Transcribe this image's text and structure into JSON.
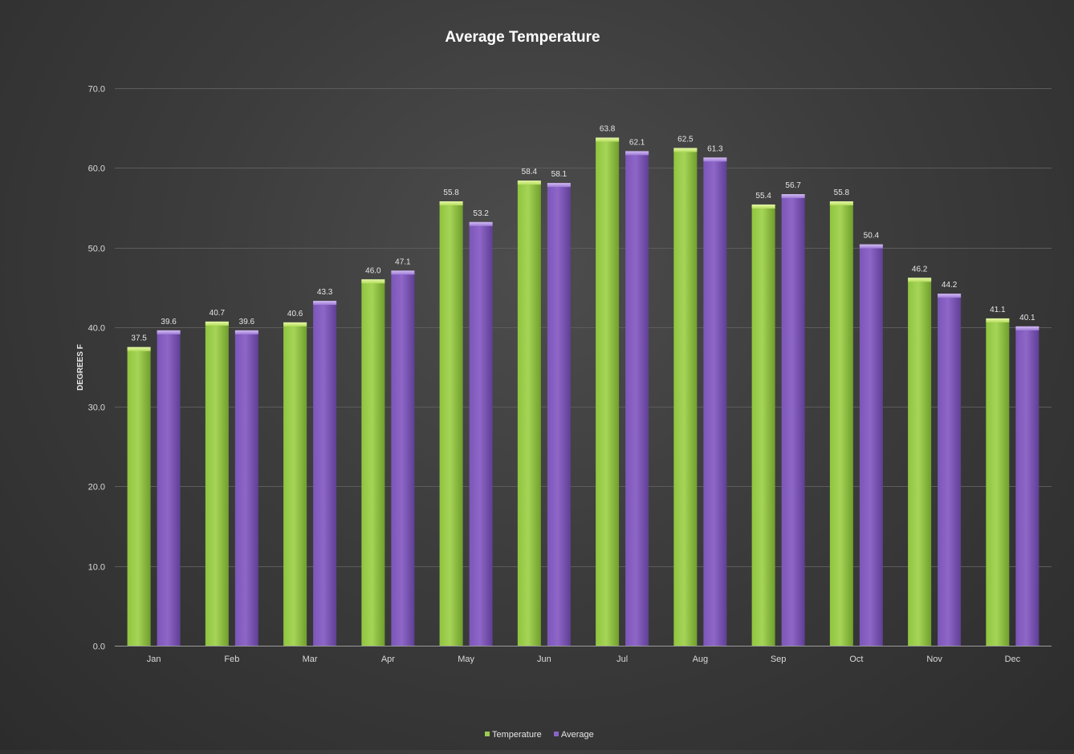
{
  "chart_data": {
    "type": "bar",
    "title": "Average Temperature",
    "ylabel": "DEGREES F",
    "xlabel": "",
    "ylim": [
      0,
      70
    ],
    "yticks": [
      "0.0",
      "10.0",
      "20.0",
      "30.0",
      "40.0",
      "50.0",
      "60.0",
      "70.0"
    ],
    "categories": [
      "Jan",
      "Feb",
      "Mar",
      "Apr",
      "May",
      "Jun",
      "Jul",
      "Aug",
      "Sep",
      "Oct",
      "Nov",
      "Dec"
    ],
    "grid": true,
    "legend_position": "bottom",
    "series": [
      {
        "name": "Temperature",
        "color": "#8bc34a",
        "values": [
          37.5,
          40.7,
          40.6,
          46.0,
          55.8,
          58.4,
          63.8,
          62.5,
          55.4,
          55.8,
          46.2,
          41.1
        ],
        "labels": [
          "37.5",
          "40.7",
          "40.6",
          "46.0",
          "55.8",
          "58.4",
          "63.8",
          "62.5",
          "55.4",
          "55.8",
          "46.2",
          "41.1"
        ]
      },
      {
        "name": "Average",
        "color": "#7e57c2",
        "values": [
          39.6,
          39.6,
          43.3,
          47.1,
          53.2,
          58.1,
          62.1,
          61.3,
          56.7,
          50.4,
          44.2,
          40.1
        ],
        "labels": [
          "39.6",
          "39.6",
          "43.3",
          "47.1",
          "53.2",
          "58.1",
          "62.1",
          "61.3",
          "56.7",
          "50.4",
          "44.2",
          "40.1"
        ]
      }
    ]
  }
}
